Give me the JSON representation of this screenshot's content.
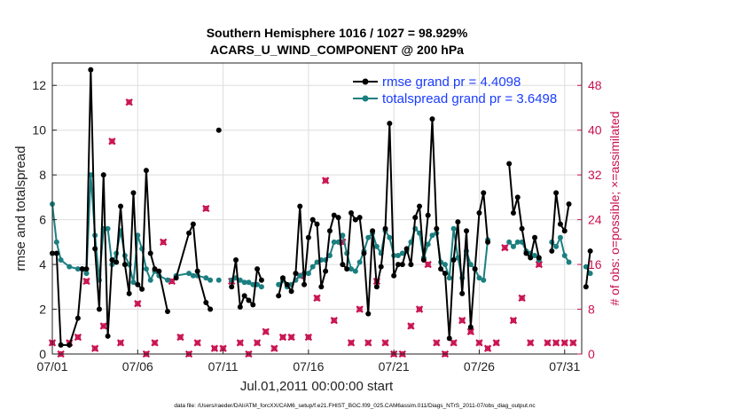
{
  "chart_data": {
    "type": "line",
    "title": "Southern Hemisphere 1016 / 1027 = 98.929%",
    "subtitle": "ACARS_U_WIND_COMPONENT @ 200 hPa",
    "xlabel": "Jul.01,2011 00:00:00 start",
    "ylabel": "rmse and totalspread",
    "y2label": "# of obs: o=possible; ×=assimilated",
    "xlim": [
      0,
      31
    ],
    "ylim": [
      0,
      13
    ],
    "y2lim": [
      0,
      52
    ],
    "x_ticks": [
      0,
      5,
      10,
      15,
      20,
      25,
      30
    ],
    "x_tick_labels": [
      "07/01",
      "07/06",
      "07/11",
      "07/16",
      "07/21",
      "07/26",
      "07/31"
    ],
    "y_ticks": [
      0,
      2,
      4,
      6,
      8,
      10,
      12
    ],
    "y_tick_labels": [
      "0",
      "2",
      "4",
      "6",
      "8",
      "10",
      "12"
    ],
    "y2_ticks": [
      0,
      8,
      16,
      24,
      32,
      40,
      48
    ],
    "y2_tick_labels": [
      "0",
      "8",
      "16",
      "24",
      "32",
      "40",
      "48"
    ],
    "grid": true,
    "legend_position": "top-right",
    "series": [
      {
        "name": "rmse grand pr = 4.4098",
        "color": "#000000",
        "axis": "left",
        "x": [
          0,
          0.25,
          0.5,
          1,
          1.5,
          1.75,
          2,
          2.25,
          2.5,
          2.75,
          3,
          3.25,
          3.5,
          3.75,
          4,
          4.25,
          4.5,
          4.75,
          5,
          5.25,
          5.5,
          5.75,
          6,
          6.25,
          6.75,
          7,
          7.25,
          8,
          8.25,
          8.5,
          9,
          9.25,
          9.5,
          9.75,
          null,
          10.5,
          10.75,
          11,
          11.25,
          11.5,
          11.75,
          12,
          12.25,
          null,
          13.25,
          13.5,
          13.75,
          14,
          14.25,
          14.5,
          14.75,
          15,
          15.25,
          15.5,
          15.75,
          16,
          16.25,
          16.5,
          16.75,
          17,
          17.25,
          17.5,
          17.75,
          18,
          18.25,
          18.5,
          18.75,
          19,
          19.25,
          19.5,
          19.75,
          20,
          20.25,
          20.5,
          20.75,
          21,
          21.25,
          21.5,
          21.75,
          22,
          22.25,
          22.5,
          22.75,
          23,
          23.25,
          23.5,
          23.75,
          24,
          24.25,
          24.5,
          24.75,
          25,
          25.25,
          25.5,
          null,
          26.75,
          27,
          27.25,
          27.5,
          27.75,
          28,
          28.25,
          28.5,
          null,
          29.25,
          29.5,
          29.75,
          30,
          30.25,
          null,
          31.25,
          31.5
        ],
        "values": [
          4.5,
          4.5,
          0.4,
          0.4,
          1.6,
          3.8,
          3.8,
          12.7,
          4.7,
          2.0,
          8.0,
          0.8,
          4.2,
          4.1,
          6.6,
          4.0,
          2.7,
          7.2,
          3.1,
          2.9,
          8.2,
          4.5,
          3.8,
          3.7,
          1.9,
          null,
          3.4,
          5.4,
          5.8,
          3.7,
          2.3,
          2.0,
          null,
          10.0,
          null,
          3.0,
          4.2,
          2.1,
          2.6,
          2.4,
          2.2,
          3.8,
          3.3,
          null,
          2.6,
          3.4,
          3.1,
          2.8,
          3.6,
          6.6,
          3.1,
          5.2,
          6.0,
          5.8,
          3.0,
          3.7,
          5.5,
          6.2,
          6.1,
          4.0,
          3.8,
          6.3,
          6.0,
          6.1,
          4.5,
          1.8,
          5.5,
          3.0,
          3.9,
          5.6,
          10.3,
          3.5,
          4.0,
          4.0,
          4.7,
          4.0,
          6.1,
          6.6,
          4.2,
          6.2,
          10.5,
          5.6,
          3.8,
          3.6,
          0.7,
          4.2,
          5.9,
          2.7,
          5.5,
          1.2,
          3.8,
          6.3,
          7.2,
          5.0,
          null,
          8.5,
          6.3,
          7.0,
          5.6,
          4.5,
          4.3,
          5.2,
          4.3,
          null,
          4.6,
          7.2,
          5.8,
          5.5,
          6.7,
          null,
          3.0,
          4.6
        ]
      },
      {
        "name": "totalspread grand pr = 3.6498",
        "color": "#1b7f80",
        "axis": "left",
        "x": [
          0,
          0.25,
          0.5,
          1,
          1.5,
          1.75,
          2,
          2.25,
          2.5,
          2.75,
          3,
          3.25,
          3.5,
          3.75,
          4,
          4.25,
          4.5,
          4.75,
          5,
          5.25,
          5.5,
          5.75,
          6,
          6.25,
          6.75,
          7,
          7.25,
          8,
          8.25,
          8.5,
          9,
          9.25,
          9.5,
          9.75,
          null,
          10.5,
          10.75,
          11,
          11.25,
          11.5,
          11.75,
          12,
          12.25,
          null,
          13.25,
          13.5,
          13.75,
          14,
          14.25,
          14.5,
          14.75,
          15,
          15.25,
          15.5,
          15.75,
          16,
          16.25,
          16.5,
          16.75,
          17,
          17.25,
          17.5,
          17.75,
          18,
          18.25,
          18.5,
          18.75,
          19,
          19.25,
          19.5,
          19.75,
          20,
          20.25,
          20.5,
          20.75,
          21,
          21.25,
          21.5,
          21.75,
          22,
          22.25,
          22.5,
          22.75,
          23,
          23.25,
          23.5,
          23.75,
          24,
          24.25,
          24.5,
          24.75,
          25,
          25.25,
          25.5,
          null,
          26.75,
          27,
          27.25,
          27.5,
          27.75,
          28,
          28.25,
          28.5,
          null,
          29.25,
          29.5,
          29.75,
          30,
          30.25,
          null,
          31.25,
          31.5
        ],
        "values": [
          6.7,
          5.0,
          4.2,
          3.9,
          3.8,
          3.8,
          3.6,
          8.0,
          5.3,
          3.3,
          5.6,
          5.6,
          4.0,
          4.5,
          5.5,
          4.4,
          4.0,
          3.2,
          5.3,
          4.7,
          3.8,
          3.3,
          3.7,
          3.5,
          3.3,
          null,
          3.5,
          3.6,
          3.5,
          3.5,
          3.4,
          3.3,
          null,
          3.3,
          null,
          3.3,
          3.4,
          3.3,
          3.2,
          3.2,
          3.1,
          3.1,
          3.0,
          null,
          3.1,
          3.3,
          3.0,
          3.1,
          3.3,
          3.5,
          3.6,
          3.6,
          3.9,
          4.1,
          4.2,
          4.2,
          4.4,
          5.0,
          5.0,
          5.3,
          4.5,
          3.8,
          3.7,
          4.1,
          4.6,
          5.2,
          5.4,
          4.8,
          4.5,
          5.5,
          5.2,
          4.4,
          4.4,
          4.5,
          4.6,
          5.0,
          5.6,
          5.4,
          4.3,
          4.9,
          5.3,
          5.4,
          4.1,
          4.0,
          3.4,
          5.6,
          4.3,
          3.4,
          4.6,
          4.0,
          3.8,
          3.4,
          3.3,
          5.1,
          null,
          5.0,
          4.8,
          5.0,
          5.0,
          4.6,
          4.5,
          4.4,
          4.2,
          null,
          5.0,
          4.8,
          5.2,
          4.4,
          4.1,
          null,
          3.9,
          3.6
        ]
      },
      {
        "name": "obs possible",
        "color": "#c8104f",
        "axis": "right",
        "marker": "circle",
        "x": [
          0,
          0.5,
          1,
          1.5,
          2,
          2.5,
          3,
          3.5,
          4,
          4.5,
          5,
          5.5,
          6,
          6.5,
          7,
          7.5,
          8,
          8.5,
          9,
          9.5,
          10,
          10.5,
          11,
          11.5,
          12,
          12.5,
          13,
          13.5,
          14,
          14.5,
          15,
          15.5,
          16,
          16.5,
          17,
          17.5,
          18,
          18.5,
          19,
          19.5,
          20,
          20.5,
          21,
          21.5,
          22,
          22.5,
          23,
          23.5,
          24,
          24.5,
          25,
          25.5,
          26,
          26.5,
          27,
          27.5,
          28,
          28.5,
          29,
          29.5,
          30,
          30.5
        ],
        "values": [
          2,
          0,
          2,
          3,
          13,
          1,
          5,
          38,
          2,
          45,
          9,
          0,
          2,
          20,
          13,
          3,
          0,
          2,
          26,
          1,
          1,
          13,
          2,
          0,
          2,
          4,
          1,
          3,
          3,
          14,
          3,
          10,
          31,
          6,
          20,
          2,
          8,
          2,
          13,
          2,
          0,
          0,
          5,
          8,
          16,
          2,
          0,
          2,
          6,
          4,
          2,
          1,
          2,
          19,
          6,
          10,
          2,
          16,
          2,
          2,
          2,
          2
        ]
      },
      {
        "name": "obs assimilated",
        "color": "#c8104f",
        "axis": "right",
        "marker": "x",
        "x": [
          0,
          0.5,
          1,
          1.5,
          2,
          2.5,
          3,
          3.5,
          4,
          4.5,
          5,
          5.5,
          6,
          6.5,
          7,
          7.5,
          8,
          8.5,
          9,
          9.5,
          10,
          10.5,
          11,
          11.5,
          12,
          12.5,
          13,
          13.5,
          14,
          14.5,
          15,
          15.5,
          16,
          16.5,
          17,
          17.5,
          18,
          18.5,
          19,
          19.5,
          20,
          20.5,
          21,
          21.5,
          22,
          22.5,
          23,
          23.5,
          24,
          24.5,
          25,
          25.5,
          26,
          26.5,
          27,
          27.5,
          28,
          28.5,
          29,
          29.5,
          30,
          30.5
        ],
        "values": [
          2,
          0,
          2,
          3,
          13,
          1,
          5,
          38,
          2,
          45,
          9,
          0,
          2,
          20,
          13,
          3,
          0,
          2,
          26,
          1,
          1,
          13,
          2,
          0,
          2,
          4,
          1,
          3,
          3,
          14,
          3,
          10,
          31,
          6,
          20,
          2,
          8,
          2,
          13,
          2,
          0,
          0,
          5,
          8,
          16,
          2,
          0,
          2,
          6,
          4,
          2,
          1,
          2,
          19,
          6,
          10,
          2,
          16,
          2,
          2,
          2,
          2
        ]
      }
    ]
  },
  "footer": {
    "text": "data file: /Users/raeder/DAI/ATM_forcXX/CAM6_setup/f.e21.FHIST_BGC.f09_025.CAM6assim.011/Diags_NTrS_2011-07/obs_diag_output.nc"
  }
}
